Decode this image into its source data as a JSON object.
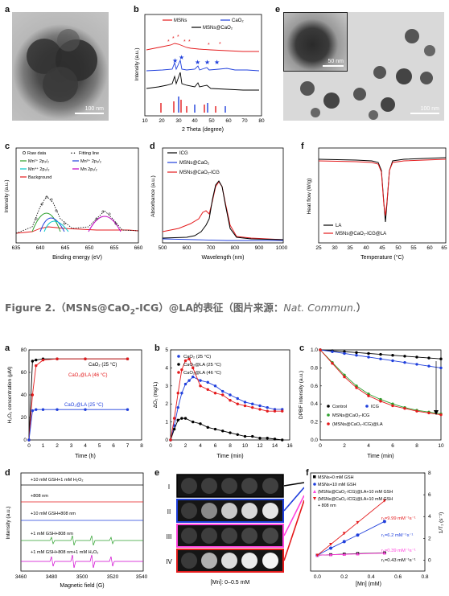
{
  "figure1": {
    "panels": {
      "a": {
        "label": "a",
        "scale": "100 nm"
      },
      "b": {
        "label": "b",
        "legend": [
          "MSNs",
          "CaO₂",
          "MSNs@CaO₂"
        ],
        "xlabel": "2 Theta (degree)",
        "ylabel": "Intensity (a.u.)",
        "xticks": [
          "10",
          "20",
          "30",
          "40",
          "50",
          "60",
          "70",
          "80"
        ]
      },
      "c": {
        "label": "c",
        "legend": [
          "Raw data",
          "Fitting line",
          "Mn²⁺ 2p₃/₂",
          "Mn³⁺ 2p₃/₂",
          "Mn⁴⁺ 2p₃/₂",
          "Mn 2p₁/₂",
          "Background"
        ],
        "xlabel": "Binding energy (eV)",
        "ylabel": "Intensity (a.u.)",
        "xticks": [
          "635",
          "640",
          "645",
          "650",
          "655",
          "660"
        ]
      },
      "d": {
        "label": "d",
        "legend": [
          "ICG",
          "MSNs@CaO₂",
          "MSNs@CaO₂-ICG"
        ],
        "xlabel": "Wavelength (nm)",
        "ylabel": "Absorbance (a.u.)",
        "xticks": [
          "500",
          "600",
          "700",
          "800",
          "900",
          "1000"
        ]
      },
      "e": {
        "label": "e",
        "scale_inset": "50 nm",
        "scale_main": "100 nm"
      },
      "f": {
        "label": "f",
        "legend": [
          "LA",
          "MSNs@CaO₂-ICG@LA"
        ],
        "xlabel": "Temperature (°C)",
        "ylabel": "Heat flow (W/g)",
        "xticks": [
          "25",
          "30",
          "35",
          "40",
          "45",
          "50",
          "55",
          "60",
          "65"
        ]
      }
    }
  },
  "caption": {
    "prefix": "Figure 2.（MSNs@CaO",
    "sub": "2",
    "middle": "-ICG）@LA的表征（图片来源：",
    "source": "Nat. Commun.",
    "suffix": "）"
  },
  "figure2": {
    "panels": {
      "a": {
        "label": "a",
        "xlabel": "Time (h)",
        "ylabel": "H₂O₂ concentration (μM)",
        "xticks": [
          "0",
          "1",
          "2",
          "3",
          "4",
          "5",
          "6",
          "7",
          "8"
        ],
        "yticks": [
          "0",
          "20",
          "40",
          "60",
          "80"
        ],
        "annotations": [
          "CaO₂ (25 °C)",
          "CaO₂@LA (46 °C)",
          "CaO₂@LA (25 °C)"
        ]
      },
      "b": {
        "label": "b",
        "legend": [
          "CaO₂ (25 °C)",
          "CaO₂@LA (25 °C)",
          "CaO₂@LA (46 °C)"
        ],
        "xlabel": "Time (min)",
        "ylabel": "ΔO₂ (mg/L)",
        "xticks": [
          "0",
          "2",
          "4",
          "6",
          "8",
          "10",
          "12",
          "14",
          "16"
        ],
        "yticks": [
          "0",
          "1",
          "2",
          "3",
          "4",
          "5"
        ]
      },
      "c": {
        "label": "c",
        "legend": [
          "Control",
          "ICG",
          "MSNs@CaO₂-ICG",
          "(MSNs@CaO₂-ICG)@LA"
        ],
        "xlabel": "Time (min)",
        "ylabel": "DPBF intensity (a.u.)",
        "xticks": [
          "0",
          "2",
          "4",
          "6",
          "8",
          "10"
        ],
        "yticks": [
          "0.0",
          "0.2",
          "0.4",
          "0.6",
          "0.8",
          "1.0"
        ]
      },
      "d": {
        "label": "d",
        "rows": [
          "+10 mM GSH+1 mM H₂O₂",
          "+808 nm",
          "+10 mM GSH+808 nm",
          "+1 mM GSH+808 nm",
          "+1 mM GSH+808 nm+1 mM H₂O₂"
        ],
        "xlabel": "Magnetic field (G)",
        "ylabel": "Intensity (a.u.)",
        "xticks": [
          "3460",
          "3480",
          "3500",
          "3520",
          "3540"
        ]
      },
      "e": {
        "label": "e",
        "rows": [
          "I",
          "II",
          "III",
          "IV"
        ],
        "xlabel": "[Mn]: 0–0.5 mM"
      },
      "f": {
        "label": "f",
        "legend": [
          "MSNs+0 mM GSH",
          "MSNs+10 mM GSH",
          "(MSNs@CaO₂-ICG)@LA+10 mM GSH",
          "(MSNs@CaO₂-ICG)@LA+10 mM GSH",
          "+ 808 nm"
        ],
        "annotations": [
          "r₁=9.99 mM⁻¹s⁻¹",
          "r₁=6.2 mM⁻¹s⁻¹",
          "r₁=0.39 mM⁻¹s⁻¹",
          "r₁=0.43 mM⁻¹s⁻¹"
        ],
        "xlabel": "[Mn] (mM)",
        "ylabel": "1/T₁ (s⁻¹)",
        "xticks": [
          "0.0",
          "0.2",
          "0.4",
          "0.6",
          "0.8"
        ],
        "yticks": [
          "0",
          "2",
          "4",
          "6",
          "8"
        ]
      }
    }
  },
  "chart_data": [
    {
      "type": "line",
      "title": "",
      "xlabel": "Time (h)",
      "ylabel": "H₂O₂ concentration (μM)",
      "xlim": [
        0,
        8
      ],
      "ylim": [
        0,
        80
      ],
      "series": [
        {
          "name": "CaO₂ (25 °C)",
          "color": "#000000",
          "x": [
            0,
            0.25,
            0.5,
            1,
            2,
            4,
            7
          ],
          "y": [
            0,
            70,
            71,
            72,
            72,
            72,
            72
          ]
        },
        {
          "name": "CaO₂@LA (46 °C)",
          "color": "#e41a1c",
          "x": [
            0,
            0.25,
            0.5,
            1,
            2,
            4,
            7
          ],
          "y": [
            0,
            40,
            66,
            71,
            72,
            72,
            72
          ]
        },
        {
          "name": "CaO₂@LA (25 °C)",
          "color": "#1f3fdc",
          "x": [
            0,
            0.25,
            0.5,
            1,
            2,
            4,
            7
          ],
          "y": [
            0,
            26,
            27,
            27,
            27,
            27,
            27
          ]
        }
      ]
    },
    {
      "type": "line",
      "title": "",
      "xlabel": "Time (min)",
      "ylabel": "ΔO₂ (mg/L)",
      "xlim": [
        0,
        16
      ],
      "ylim": [
        0,
        5
      ],
      "series": [
        {
          "name": "CaO₂ (25 °C)",
          "color": "#1f3fdc",
          "x": [
            0,
            0.5,
            1,
            1.5,
            2,
            2.5,
            3,
            4,
            5,
            6,
            7,
            8,
            9,
            10,
            11,
            12,
            13,
            14,
            15
          ],
          "y": [
            0,
            0.8,
            1.8,
            2.6,
            3.1,
            3.3,
            3.5,
            3.3,
            3.2,
            3.0,
            2.7,
            2.5,
            2.3,
            2.1,
            2.0,
            1.9,
            1.8,
            1.7,
            1.7
          ]
        },
        {
          "name": "CaO₂@LA (25 °C)",
          "color": "#000000",
          "x": [
            0,
            0.5,
            1,
            1.5,
            2,
            3,
            4,
            5,
            6,
            7,
            8,
            9,
            10,
            11,
            12,
            13,
            14,
            15
          ],
          "y": [
            0,
            0.6,
            1.1,
            1.2,
            1.2,
            1.0,
            0.9,
            0.7,
            0.6,
            0.5,
            0.4,
            0.3,
            0.2,
            0.2,
            0.1,
            0.1,
            0.05,
            0.0
          ]
        },
        {
          "name": "CaO₂@LA (46 °C)",
          "color": "#e41a1c",
          "x": [
            0,
            0.5,
            1,
            1.5,
            2,
            2.5,
            3,
            4,
            5,
            6,
            7,
            8,
            9,
            10,
            11,
            12,
            13,
            14,
            15
          ],
          "y": [
            0,
            1.2,
            2.6,
            3.9,
            4.4,
            4.5,
            4.0,
            3.0,
            2.8,
            2.6,
            2.5,
            2.2,
            2.0,
            1.9,
            1.8,
            1.7,
            1.6,
            1.6,
            1.6
          ]
        }
      ]
    },
    {
      "type": "line",
      "title": "",
      "xlabel": "Time (min)",
      "ylabel": "DPBF intensity (a.u.)",
      "xlim": [
        0,
        10
      ],
      "ylim": [
        0,
        1.0
      ],
      "series": [
        {
          "name": "Control",
          "color": "#000000",
          "x": [
            0,
            1,
            2,
            3,
            4,
            5,
            6,
            7,
            8,
            9,
            10
          ],
          "y": [
            1.0,
            0.99,
            0.98,
            0.97,
            0.96,
            0.95,
            0.94,
            0.93,
            0.92,
            0.91,
            0.9
          ]
        },
        {
          "name": "ICG",
          "color": "#1f3fdc",
          "x": [
            0,
            1,
            2,
            3,
            4,
            5,
            6,
            7,
            8,
            9,
            10
          ],
          "y": [
            1.0,
            0.98,
            0.96,
            0.94,
            0.92,
            0.9,
            0.88,
            0.86,
            0.84,
            0.82,
            0.8
          ]
        },
        {
          "name": "MSNs@CaO₂-ICG",
          "color": "#2ca02c",
          "x": [
            0,
            1,
            2,
            3,
            4,
            5,
            6,
            7,
            8,
            9,
            10
          ],
          "y": [
            1.0,
            0.86,
            0.72,
            0.6,
            0.51,
            0.45,
            0.4,
            0.36,
            0.33,
            0.31,
            0.29
          ]
        },
        {
          "name": "(MSNs@CaO₂-ICG)@LA",
          "color": "#e41a1c",
          "x": [
            0,
            1,
            2,
            3,
            4,
            5,
            6,
            7,
            8,
            9,
            10
          ],
          "y": [
            1.0,
            0.85,
            0.7,
            0.58,
            0.49,
            0.43,
            0.38,
            0.35,
            0.32,
            0.3,
            0.28
          ]
        }
      ]
    },
    {
      "type": "scatter",
      "title": "",
      "xlabel": "[Mn] (mM)",
      "ylabel": "1/T₁ (s⁻¹)",
      "xlim": [
        -0.05,
        0.8
      ],
      "ylim": [
        -1,
        8
      ],
      "series": [
        {
          "name": "MSNs+0 mM GSH",
          "color": "#000000",
          "x": [
            0,
            0.1,
            0.2,
            0.3,
            0.5
          ],
          "y": [
            0.45,
            0.5,
            0.55,
            0.6,
            0.67
          ]
        },
        {
          "name": "MSNs+10 mM GSH",
          "color": "#1f3fdc",
          "x": [
            0,
            0.1,
            0.2,
            0.3,
            0.5
          ],
          "y": [
            0.45,
            1.1,
            1.7,
            2.3,
            3.55
          ]
        },
        {
          "name": "(MSNs@CaO₂-ICG)@LA+10 mM GSH",
          "color": "#ff44dd",
          "x": [
            0,
            0.1,
            0.2,
            0.3,
            0.5
          ],
          "y": [
            0.45,
            0.5,
            0.53,
            0.57,
            0.65
          ]
        },
        {
          "name": "(MSNs@CaO₂-ICG)@LA+10 mM GSH + 808 nm",
          "color": "#e41a1c",
          "x": [
            0,
            0.1,
            0.2,
            0.3,
            0.5
          ],
          "y": [
            0.45,
            1.45,
            2.45,
            3.45,
            5.45
          ]
        }
      ]
    }
  ]
}
